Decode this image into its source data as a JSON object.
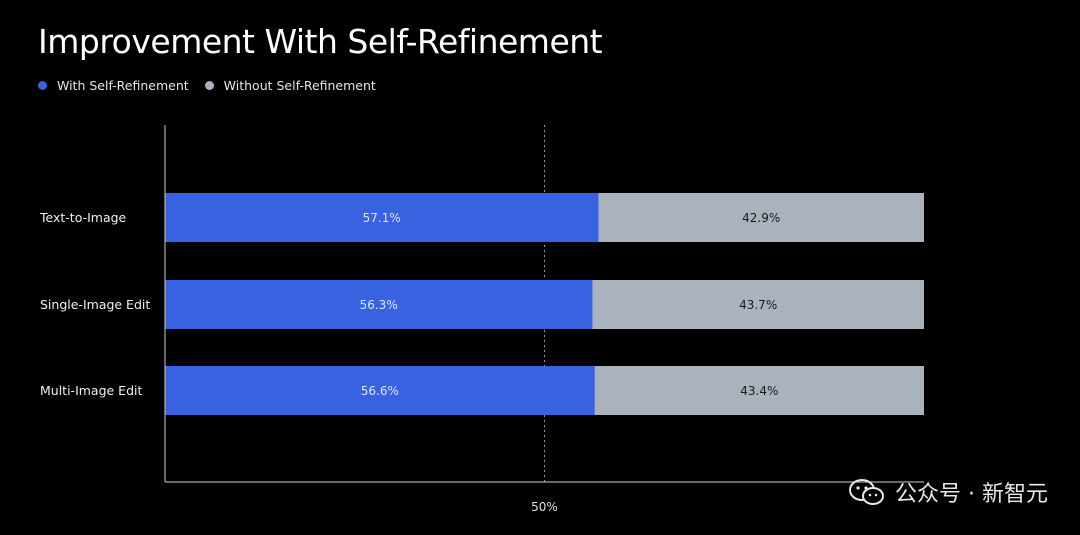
{
  "chart_data": {
    "type": "bar",
    "stacked": true,
    "orientation": "horizontal",
    "title": "Improvement With Self-Refinement",
    "categories": [
      "Text-to-Image",
      "Single-Image Edit",
      "Multi-Image Edit"
    ],
    "series": [
      {
        "name": "With Self-Refinement",
        "values": [
          57.1,
          56.3,
          56.6
        ],
        "labels": [
          "57.1%",
          "56.3%",
          "56.6%"
        ],
        "color": "#3862e0"
      },
      {
        "name": "Without Self-Refinement",
        "values": [
          42.9,
          43.7,
          43.4
        ],
        "labels": [
          "42.9%",
          "43.7%",
          "43.4%"
        ],
        "color": "#aab3bd"
      }
    ],
    "xlim": [
      0,
      100
    ],
    "reference_line": {
      "value": 50,
      "label": "50%"
    },
    "legend_position": "top-left",
    "grid": false
  },
  "watermark": {
    "text": "公众号 · 新智元"
  }
}
